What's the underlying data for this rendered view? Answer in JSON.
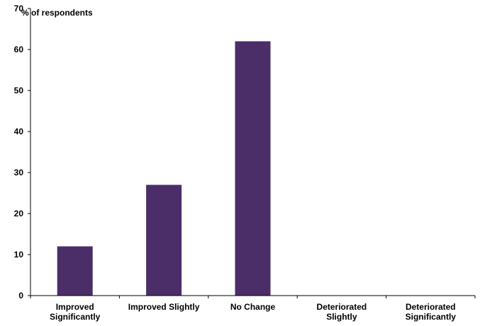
{
  "chart_data": {
    "type": "bar",
    "ylabel": "% of respondents",
    "categories": [
      [
        "Improved",
        "Significantly"
      ],
      [
        "Improved Slightly"
      ],
      [
        "No Change"
      ],
      [
        "Deteriorated",
        "Slightly"
      ],
      [
        "Deteriorated",
        "Significantly"
      ]
    ],
    "values": [
      12,
      27,
      62,
      0,
      0
    ],
    "ylim": [
      0,
      70
    ],
    "yticks": [
      0,
      10,
      20,
      30,
      40,
      50,
      60,
      70
    ],
    "bar_color": "#4b2d68",
    "grid": false,
    "legend": "none"
  }
}
